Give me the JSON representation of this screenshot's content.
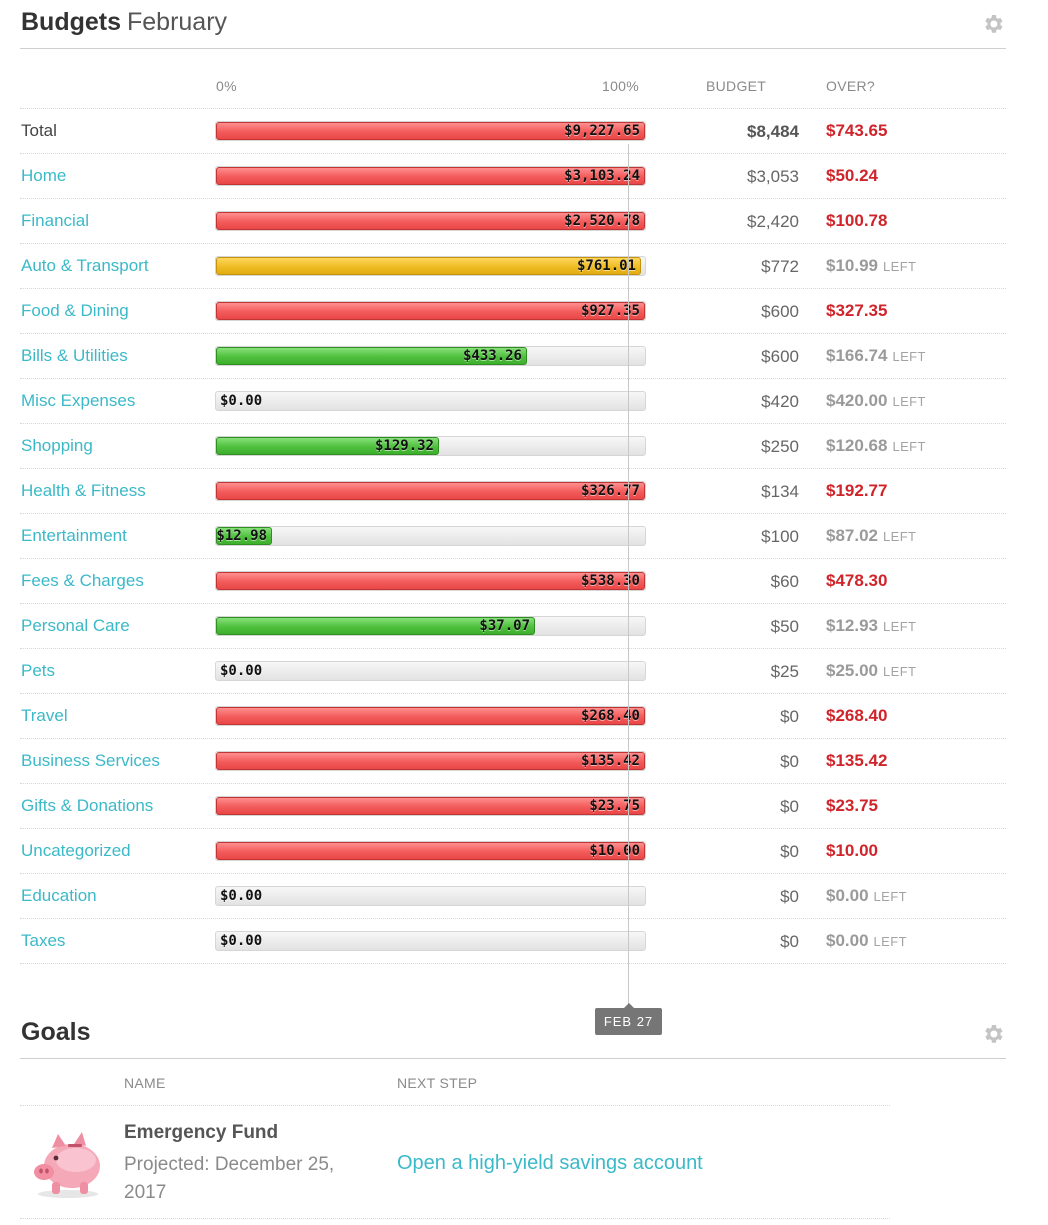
{
  "budgets": {
    "title": "Budgets",
    "month": "February",
    "columns": {
      "pct_start": "0%",
      "pct_end": "100%",
      "budget": "BUDGET",
      "over": "OVER?"
    },
    "left_word": "LEFT",
    "rows": [
      {
        "category": "Total",
        "spent": "$9,227.65",
        "fill": 1.0,
        "color": "red",
        "budget": "$8,484",
        "over": "$743.65",
        "status": "over"
      },
      {
        "category": "Home",
        "spent": "$3,103.24",
        "fill": 1.0,
        "color": "red",
        "budget": "$3,053",
        "over": "$50.24",
        "status": "over"
      },
      {
        "category": "Financial",
        "spent": "$2,520.78",
        "fill": 1.0,
        "color": "red",
        "budget": "$2,420",
        "over": "$100.78",
        "status": "over"
      },
      {
        "category": "Auto & Transport",
        "spent": "$761.01",
        "fill": 0.986,
        "color": "yellow",
        "budget": "$772",
        "over": "$10.99",
        "status": "left"
      },
      {
        "category": "Food & Dining",
        "spent": "$927.35",
        "fill": 1.0,
        "color": "red",
        "budget": "$600",
        "over": "$327.35",
        "status": "over"
      },
      {
        "category": "Bills & Utilities",
        "spent": "$433.26",
        "fill": 0.722,
        "color": "green",
        "budget": "$600",
        "over": "$166.74",
        "status": "left"
      },
      {
        "category": "Misc Expenses",
        "spent": "$0.00",
        "fill": 0,
        "color": "none",
        "budget": "$420",
        "over": "$420.00",
        "status": "left"
      },
      {
        "category": "Shopping",
        "spent": "$129.32",
        "fill": 0.517,
        "color": "green",
        "budget": "$250",
        "over": "$120.68",
        "status": "left"
      },
      {
        "category": "Health & Fitness",
        "spent": "$326.77",
        "fill": 1.0,
        "color": "red",
        "budget": "$134",
        "over": "$192.77",
        "status": "over"
      },
      {
        "category": "Entertainment",
        "spent": "$12.98",
        "fill": 0.13,
        "color": "green",
        "budget": "$100",
        "over": "$87.02",
        "status": "left"
      },
      {
        "category": "Fees & Charges",
        "spent": "$538.30",
        "fill": 1.0,
        "color": "red",
        "budget": "$60",
        "over": "$478.30",
        "status": "over"
      },
      {
        "category": "Personal Care",
        "spent": "$37.07",
        "fill": 0.741,
        "color": "green",
        "budget": "$50",
        "over": "$12.93",
        "status": "left"
      },
      {
        "category": "Pets",
        "spent": "$0.00",
        "fill": 0,
        "color": "none",
        "budget": "$25",
        "over": "$25.00",
        "status": "left"
      },
      {
        "category": "Travel",
        "spent": "$268.40",
        "fill": 1.0,
        "color": "red",
        "budget": "$0",
        "over": "$268.40",
        "status": "over"
      },
      {
        "category": "Business Services",
        "spent": "$135.42",
        "fill": 1.0,
        "color": "red",
        "budget": "$0",
        "over": "$135.42",
        "status": "over"
      },
      {
        "category": "Gifts & Donations",
        "spent": "$23.75",
        "fill": 1.0,
        "color": "red",
        "budget": "$0",
        "over": "$23.75",
        "status": "over"
      },
      {
        "category": "Uncategorized",
        "spent": "$10.00",
        "fill": 1.0,
        "color": "red",
        "budget": "$0",
        "over": "$10.00",
        "status": "over"
      },
      {
        "category": "Education",
        "spent": "$0.00",
        "fill": 0,
        "color": "none",
        "budget": "$0",
        "over": "$0.00",
        "status": "left"
      },
      {
        "category": "Taxes",
        "spent": "$0.00",
        "fill": 0,
        "color": "none",
        "budget": "$0",
        "over": "$0.00",
        "status": "left"
      }
    ],
    "today_marker": {
      "label": "FEB 27",
      "fraction": 0.964
    }
  },
  "goals": {
    "title": "Goals",
    "columns": {
      "name": "NAME",
      "next": "NEXT STEP"
    },
    "items": [
      {
        "icon": "piggy-bank-icon",
        "name": "Emergency Fund",
        "projected": "Projected: December 25, 2017",
        "next_step": "Open a high-yield savings account"
      }
    ]
  },
  "colors": {
    "accent": "#3bb9c8",
    "over": "#d0242b",
    "muted": "#9a9a9a",
    "red_bar": "#f35b5b",
    "yellow_bar": "#efbc24",
    "green_bar": "#4fc03e"
  }
}
